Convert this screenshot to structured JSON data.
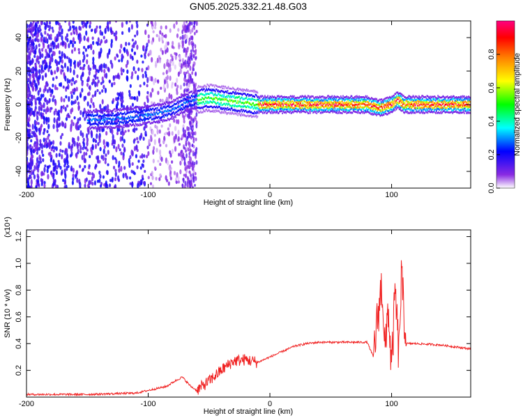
{
  "title": "GN05.2025.332.21.48.G03",
  "chart_data": [
    {
      "type": "heatmap",
      "xlabel": "Height of straight line (km)",
      "ylabel": "Frequency (Hz)",
      "xlim": [
        -200,
        165
      ],
      "ylim": [
        -50,
        50
      ],
      "xticks": [
        -200,
        -100,
        0,
        100
      ],
      "yticks": [
        -40,
        -20,
        0,
        20,
        40
      ],
      "colorbar": {
        "label": "Normalized spectral amplitude",
        "range": [
          0,
          1
        ],
        "ticks": [
          "0.0",
          "0.2",
          "0.4",
          "0.6",
          "0.8"
        ],
        "colors": [
          "#ffffff",
          "#7b2cf0",
          "#0000ff",
          "#00ffff",
          "#00ff00",
          "#ffff00",
          "#ff8000",
          "#ff0000",
          "#ff0080"
        ]
      },
      "ridge": {
        "x": [
          -140,
          -120,
          -100,
          -90,
          -80,
          -70,
          -60,
          -50,
          -40,
          -30,
          -20,
          -10,
          0,
          20,
          40,
          60,
          80,
          90,
          100,
          105,
          110,
          130,
          165
        ],
        "freq": [
          -9,
          -8,
          -6,
          -5,
          -3,
          1,
          3,
          4,
          3,
          2,
          1,
          0,
          0,
          0,
          0,
          0,
          0,
          -2,
          0,
          3,
          0,
          0,
          0
        ]
      }
    },
    {
      "type": "line",
      "xlabel": "Height of straight line (km)",
      "ylabel": "SNR (10 * v/v)",
      "y_multiplier": "(x10⁴)",
      "xlim": [
        -200,
        165
      ],
      "ylim": [
        0,
        1.25
      ],
      "xticks": [
        -200,
        -100,
        0,
        100
      ],
      "yticks": [
        "0.2",
        "0.4",
        "0.6",
        "0.8",
        "1.0",
        "1.2"
      ],
      "series": [
        {
          "color": "#f02020",
          "x": [
            -200,
            -150,
            -110,
            -95,
            -85,
            -78,
            -72,
            -65,
            -60,
            -50,
            -40,
            -30,
            -20,
            -10,
            0,
            10,
            20,
            30,
            40,
            50,
            60,
            70,
            80,
            85,
            88,
            92,
            95,
            97,
            100,
            103,
            106,
            108,
            112,
            120,
            140,
            165
          ],
          "y": [
            0.02,
            0.02,
            0.03,
            0.06,
            0.08,
            0.12,
            0.15,
            0.08,
            0.05,
            0.12,
            0.2,
            0.27,
            0.28,
            0.26,
            0.3,
            0.34,
            0.38,
            0.4,
            0.41,
            0.41,
            0.41,
            0.41,
            0.41,
            0.3,
            0.55,
            0.85,
            0.3,
            0.7,
            0.2,
            0.8,
            0.3,
            0.9,
            0.4,
            0.4,
            0.39,
            0.36
          ]
        }
      ]
    }
  ]
}
